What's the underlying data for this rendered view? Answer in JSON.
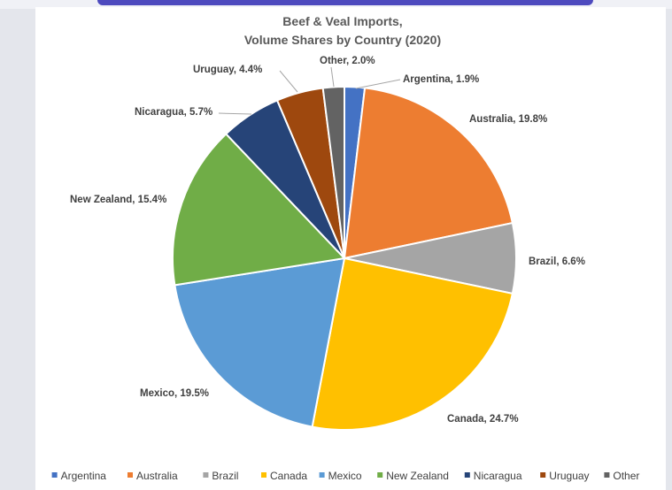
{
  "chart_data": {
    "type": "pie",
    "title_lines": [
      "Beef & Veal Imports,",
      "Volume Shares by Country (2020)"
    ],
    "categories": [
      "Argentina",
      "Australia",
      "Brazil",
      "Canada",
      "Mexico",
      "New Zealand",
      "Nicaragua",
      "Uruguay",
      "Other"
    ],
    "values": [
      1.9,
      19.8,
      6.6,
      24.7,
      19.5,
      15.4,
      5.7,
      4.4,
      2.0
    ],
    "labels": [
      "Argentina, 1.9%",
      "Australia, 19.8%",
      "Brazil, 6.6%",
      "Canada, 24.7%",
      "Mexico, 19.5%",
      "New Zealand, 15.4%",
      "Nicaragua, 5.7%",
      "Uruguay, 4.4%",
      "Other, 2.0%"
    ],
    "colors": [
      "#4472c4",
      "#ed7d31",
      "#a5a5a5",
      "#ffc000",
      "#5b9bd5",
      "#70ad47",
      "#264478",
      "#9e480e",
      "#636363"
    ],
    "legend_position": "bottom",
    "start_angle": "12 o'clock",
    "direction": "clockwise"
  }
}
